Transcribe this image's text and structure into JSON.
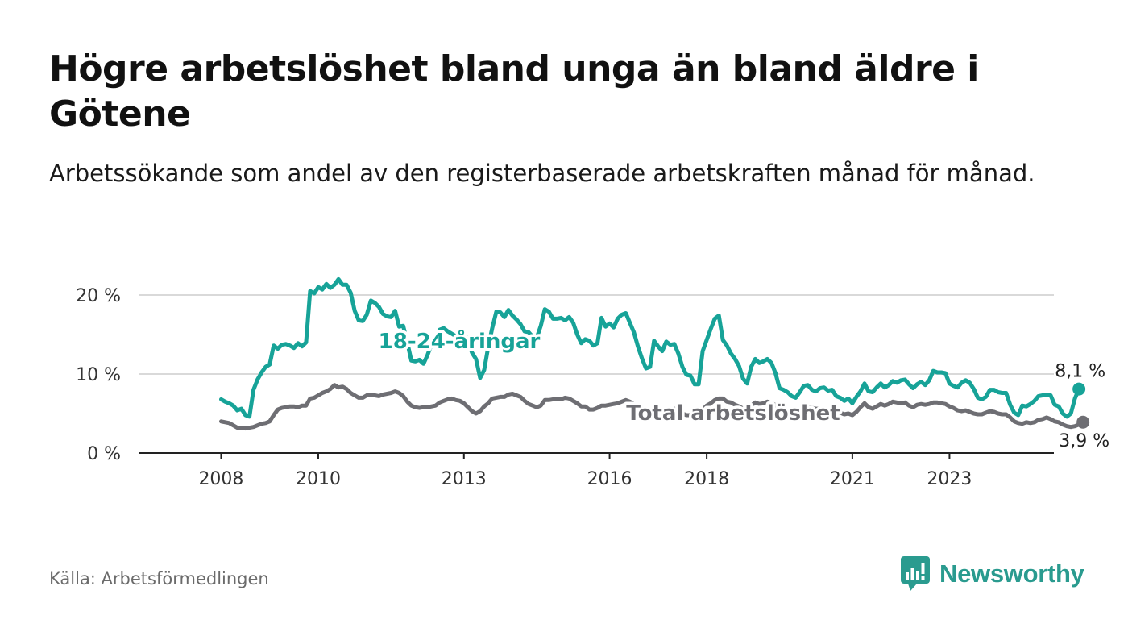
{
  "header": {
    "title": "Högre arbetslöshet bland unga än bland äldre i Götene",
    "subtitle": "Arbetssökande som andel av den registerbaserade arbetskraften månad för månad."
  },
  "footer": {
    "source": "Källa: Arbetsförmedlingen",
    "brand": "Newsworthy"
  },
  "colors": {
    "youth": "#17a398",
    "total": "#6e6e73",
    "grid": "#d9d9d9",
    "axis": "#222222",
    "brand": "#2a9b8f"
  },
  "chart_data": {
    "type": "line",
    "title": "Högre arbetslöshet bland unga än bland äldre i Götene",
    "subtitle": "Arbetssökande som andel av den registerbaserade arbetskraften månad för månad.",
    "xlabel": "",
    "ylabel": "",
    "x_start": 2008.0,
    "x_step": 0.0833333,
    "xlim": [
      2006.3,
      2025.15
    ],
    "ylim": [
      0,
      22
    ],
    "y_ticks": [
      0,
      10,
      20
    ],
    "y_tick_labels": [
      "0 %",
      "10 %",
      "20 %"
    ],
    "x_ticks": [
      2008,
      2010,
      2013,
      2016,
      2018,
      2021,
      2023
    ],
    "x_tick_labels": [
      "2008",
      "2010",
      "2013",
      "2016",
      "2018",
      "2021",
      "2023"
    ],
    "grid": true,
    "series": [
      {
        "name": "18-24-åringar",
        "color": "#17a398",
        "end_label": "8,1 %",
        "values": [
          6.8,
          6.5,
          6.3,
          6.0,
          5.4,
          5.6,
          4.8,
          4.6,
          8.0,
          9.3,
          10.2,
          10.9,
          11.2,
          13.6,
          13.2,
          13.7,
          13.8,
          13.6,
          13.3,
          13.9,
          13.5,
          14.0,
          20.5,
          20.2,
          21.0,
          20.7,
          21.4,
          20.9,
          21.3,
          22.0,
          21.3,
          21.3,
          20.3,
          18.0,
          16.8,
          16.7,
          17.5,
          19.3,
          19.0,
          18.5,
          17.6,
          17.3,
          17.2,
          18.0,
          16.0,
          16.1,
          14.0,
          11.7,
          11.6,
          11.8,
          11.3,
          12.4,
          13.8,
          14.6,
          15.6,
          15.8,
          15.4,
          15.1,
          14.8,
          14.9,
          15.2,
          14.2,
          12.7,
          11.9,
          9.5,
          10.5,
          13.4,
          15.8,
          17.9,
          17.8,
          17.2,
          18.1,
          17.4,
          16.9,
          16.3,
          15.4,
          15.3,
          14.7,
          14.6,
          16.1,
          18.2,
          17.9,
          17.0,
          17.0,
          17.1,
          16.8,
          17.2,
          16.5,
          15.0,
          13.9,
          14.4,
          14.2,
          13.6,
          13.9,
          17.1,
          16.0,
          16.4,
          15.9,
          17.0,
          17.5,
          17.7,
          16.5,
          15.3,
          13.5,
          12.0,
          10.7,
          10.9,
          14.2,
          13.5,
          12.9,
          14.1,
          13.7,
          13.8,
          12.6,
          10.9,
          9.9,
          9.8,
          8.7,
          8.7,
          12.9,
          14.3,
          15.7,
          17.0,
          17.4,
          14.3,
          13.6,
          12.6,
          11.9,
          11.0,
          9.4,
          8.8,
          10.9,
          11.9,
          11.4,
          11.6,
          11.9,
          11.4,
          10.1,
          8.2,
          8.0,
          7.7,
          7.2,
          7.0,
          7.7,
          8.5,
          8.6,
          8.0,
          7.8,
          8.2,
          8.3,
          7.9,
          8.0,
          7.2,
          7.0,
          6.6,
          6.9,
          6.3,
          7.1,
          7.8,
          8.8,
          7.8,
          7.7,
          8.3,
          8.8,
          8.3,
          8.6,
          9.1,
          8.9,
          9.2,
          9.3,
          8.7,
          8.2,
          8.7,
          9.0,
          8.6,
          9.2,
          10.4,
          10.2,
          10.2,
          10.1,
          8.8,
          8.5,
          8.3,
          8.9,
          9.2,
          8.9,
          8.1,
          7.0,
          6.8,
          7.1,
          8.0,
          8.0,
          7.7,
          7.6,
          7.6,
          6.1,
          5.1,
          4.8,
          6.0,
          5.9,
          6.2,
          6.6,
          7.2,
          7.3,
          7.4,
          7.3,
          6.1,
          5.9,
          5.0,
          4.6,
          5.0,
          6.9,
          8.1
        ]
      },
      {
        "name": "Total arbetslöshet",
        "color": "#6e6e73",
        "end_label": "3,9 %",
        "values": [
          4.0,
          3.9,
          3.8,
          3.5,
          3.2,
          3.2,
          3.1,
          3.2,
          3.3,
          3.5,
          3.7,
          3.8,
          4.0,
          4.8,
          5.5,
          5.7,
          5.8,
          5.9,
          5.9,
          5.8,
          6.0,
          6.0,
          6.9,
          7.0,
          7.3,
          7.6,
          7.8,
          8.1,
          8.6,
          8.3,
          8.4,
          8.1,
          7.6,
          7.3,
          7.0,
          7.0,
          7.3,
          7.4,
          7.3,
          7.2,
          7.4,
          7.5,
          7.6,
          7.8,
          7.6,
          7.2,
          6.5,
          6.0,
          5.8,
          5.7,
          5.8,
          5.8,
          5.9,
          6.0,
          6.4,
          6.6,
          6.8,
          6.9,
          6.7,
          6.6,
          6.3,
          5.8,
          5.3,
          5.0,
          5.3,
          5.9,
          6.3,
          6.9,
          7.0,
          7.1,
          7.1,
          7.4,
          7.5,
          7.3,
          7.1,
          6.6,
          6.2,
          6.0,
          5.8,
          6.0,
          6.7,
          6.7,
          6.8,
          6.8,
          6.8,
          7.0,
          6.9,
          6.6,
          6.3,
          5.9,
          5.9,
          5.5,
          5.5,
          5.7,
          6.0,
          6.0,
          6.1,
          6.2,
          6.3,
          6.5,
          6.7,
          6.5,
          6.2,
          5.6,
          5.1,
          4.8,
          4.7,
          5.4,
          5.3,
          5.0,
          5.1,
          5.5,
          5.6,
          5.4,
          5.0,
          4.8,
          4.8,
          4.6,
          4.5,
          5.5,
          6.0,
          6.3,
          6.7,
          6.9,
          6.9,
          6.5,
          6.4,
          6.1,
          5.9,
          5.6,
          5.5,
          6.0,
          6.4,
          6.2,
          6.3,
          6.5,
          6.3,
          6.1,
          5.6,
          5.5,
          5.3,
          5.2,
          5.0,
          5.4,
          5.8,
          5.9,
          5.7,
          5.6,
          5.6,
          5.7,
          5.5,
          5.6,
          5.3,
          5.1,
          4.9,
          5.0,
          4.8,
          5.2,
          5.8,
          6.3,
          5.8,
          5.6,
          5.9,
          6.2,
          6.0,
          6.2,
          6.5,
          6.4,
          6.3,
          6.4,
          6.0,
          5.8,
          6.1,
          6.2,
          6.1,
          6.2,
          6.4,
          6.4,
          6.3,
          6.2,
          5.9,
          5.7,
          5.4,
          5.3,
          5.4,
          5.2,
          5.0,
          4.9,
          4.9,
          5.1,
          5.3,
          5.2,
          5.0,
          4.9,
          4.9,
          4.5,
          4.0,
          3.8,
          3.7,
          3.9,
          3.8,
          3.9,
          4.2,
          4.3,
          4.5,
          4.3,
          4.0,
          3.9,
          3.6,
          3.4,
          3.3,
          3.4,
          3.6,
          3.9
        ]
      }
    ]
  }
}
